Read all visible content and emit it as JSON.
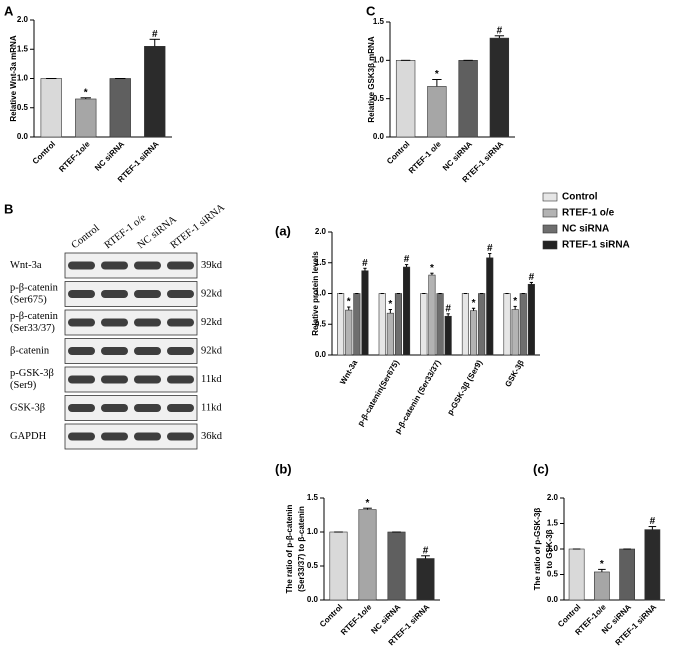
{
  "chart_data": [
    {
      "panel": "A",
      "type": "bar",
      "ylabel": [
        "Relative Wnt-3a mRNA"
      ],
      "categories": [
        "Control",
        "RTEF-1o/e",
        "NC siRNA",
        "RTEF-1 siRNA"
      ],
      "values": [
        1.0,
        0.65,
        1.0,
        1.55
      ],
      "errors": [
        0,
        0.02,
        0,
        0.12
      ],
      "annotations": [
        null,
        "*",
        null,
        "#"
      ],
      "colors": [
        "#d9d9d9",
        "#a6a6a6",
        "#5f5f5f",
        "#2b2b2b"
      ],
      "ylim": [
        0,
        2
      ],
      "yticks": [
        {
          "value": 0,
          "label": "0.0"
        },
        0.5,
        {
          "value": 1,
          "label": "1.0"
        },
        1.5,
        {
          "value": 2,
          "label": "2.0"
        }
      ]
    },
    {
      "panel": "C",
      "type": "bar",
      "ylabel": [
        "Relative GSK3β mRNA"
      ],
      "categories": [
        "Control",
        "RTEF-1 o/e",
        "NC siRNA",
        "RTEF-1 siRNA"
      ],
      "values": [
        1.0,
        0.66,
        1.0,
        1.29
      ],
      "errors": [
        0,
        0.09,
        0,
        0.03
      ],
      "annotations": [
        null,
        "*",
        null,
        "#"
      ],
      "colors": [
        "#d9d9d9",
        "#a6a6a6",
        "#5f5f5f",
        "#2b2b2b"
      ],
      "ylim": [
        0,
        1.5
      ],
      "yticks": [
        {
          "value": 0,
          "label": "0.0"
        },
        0.5,
        {
          "value": 1,
          "label": "1.0"
        },
        1.5
      ]
    },
    {
      "panel": "(a)",
      "type": "grouped_bar",
      "ylabel": [
        "Relative protein  levels"
      ],
      "legend": "upper right",
      "categories": [
        "Wnt-3a",
        "p-β-catenin(Ser675)",
        "p-β-catenin (Ser33/37)",
        "p-GSK-3β (Ser9)",
        "GSK-3β"
      ],
      "series": [
        {
          "name": "Control",
          "color": "#e6e6e6",
          "values": [
            1,
            1,
            1,
            1,
            1
          ],
          "errors": [
            0,
            0,
            0,
            0,
            0
          ],
          "annotations": [
            null,
            null,
            null,
            null,
            null
          ]
        },
        {
          "name": "RTEF-1 o/e",
          "color": "#b3b3b3",
          "values": [
            0.73,
            0.68,
            1.3,
            0.72,
            0.74
          ],
          "errors": [
            0.05,
            0.06,
            0.03,
            0.04,
            0.05
          ],
          "annotations": [
            "*",
            "*",
            "*",
            "*",
            "*"
          ]
        },
        {
          "name": "NC siRNA",
          "color": "#6e6e6e",
          "values": [
            1,
            1,
            1,
            1,
            1
          ],
          "errors": [
            0,
            0,
            0,
            0,
            0
          ],
          "annotations": [
            null,
            null,
            null,
            null,
            null
          ]
        },
        {
          "name": "RTEF-1 siRNA",
          "color": "#222222",
          "values": [
            1.37,
            1.43,
            0.63,
            1.58,
            1.15
          ],
          "errors": [
            0.04,
            0.04,
            0.04,
            0.07,
            0.03
          ],
          "annotations": [
            "#",
            "#",
            "#",
            "#",
            "#"
          ]
        }
      ],
      "ylim": [
        0,
        2
      ],
      "yticks": [
        {
          "value": 0,
          "label": "0.0"
        },
        0.5,
        {
          "value": 1,
          "label": "1.0"
        },
        1.5,
        {
          "value": 2,
          "label": "2.0"
        }
      ]
    },
    {
      "panel": "(b)",
      "type": "bar",
      "ylabel": [
        "The ratio of p-β-catenin",
        "(Ser33/37) to β-catenin"
      ],
      "categories": [
        "Control",
        "RTEF-1o/e",
        "NC siRNA",
        "RTEF-1 siRNA"
      ],
      "values": [
        1.0,
        1.33,
        1.0,
        0.61
      ],
      "errors": [
        0,
        0.02,
        0,
        0.04
      ],
      "annotations": [
        null,
        "*",
        null,
        "#"
      ],
      "colors": [
        "#d9d9d9",
        "#a6a6a6",
        "#5f5f5f",
        "#2b2b2b"
      ],
      "ylim": [
        0,
        1.5
      ],
      "yticks": [
        {
          "value": 0,
          "label": "0.0"
        },
        0.5,
        {
          "value": 1,
          "label": "1.0"
        },
        1.5
      ]
    },
    {
      "panel": "(c)",
      "type": "bar",
      "ylabel": [
        "The ratio of p-GSK-3β",
        "to GSK-3β"
      ],
      "categories": [
        "Control",
        "RTEF-1o/e",
        "NC siRNA",
        "RTEF-1 siRNA"
      ],
      "values": [
        1.0,
        0.55,
        1.0,
        1.38
      ],
      "errors": [
        0,
        0.05,
        0,
        0.06
      ],
      "annotations": [
        null,
        "*",
        null,
        "#"
      ],
      "colors": [
        "#d9d9d9",
        "#a6a6a6",
        "#5f5f5f",
        "#2b2b2b"
      ],
      "ylim": [
        0,
        2
      ],
      "yticks": [
        {
          "value": 0,
          "label": "0.0"
        },
        0.5,
        {
          "value": 1,
          "label": "1.0"
        },
        1.5,
        {
          "value": 2,
          "label": "2.0"
        }
      ]
    }
  ],
  "blot": {
    "panel": "B",
    "lanes": [
      "Control",
      "RTEF-1 o/e",
      "NC siRNA",
      "RTEF-1 siRNA"
    ],
    "rows": [
      {
        "label": [
          "Wnt-3a"
        ],
        "size": "39kd"
      },
      {
        "label": [
          "p-β-catenin",
          "(Ser675)"
        ],
        "size": "92kd"
      },
      {
        "label": [
          "p-β-catenin",
          "(Ser33/37)"
        ],
        "size": "92kd"
      },
      {
        "label": [
          "β-catenin"
        ],
        "size": "92kd"
      },
      {
        "label": [
          "p-GSK-3β",
          "(Ser9)"
        ],
        "size": "11kd"
      },
      {
        "label": [
          "GSK-3β"
        ],
        "size": "11kd"
      },
      {
        "label": [
          "GAPDH"
        ],
        "size": "36kd"
      }
    ]
  }
}
